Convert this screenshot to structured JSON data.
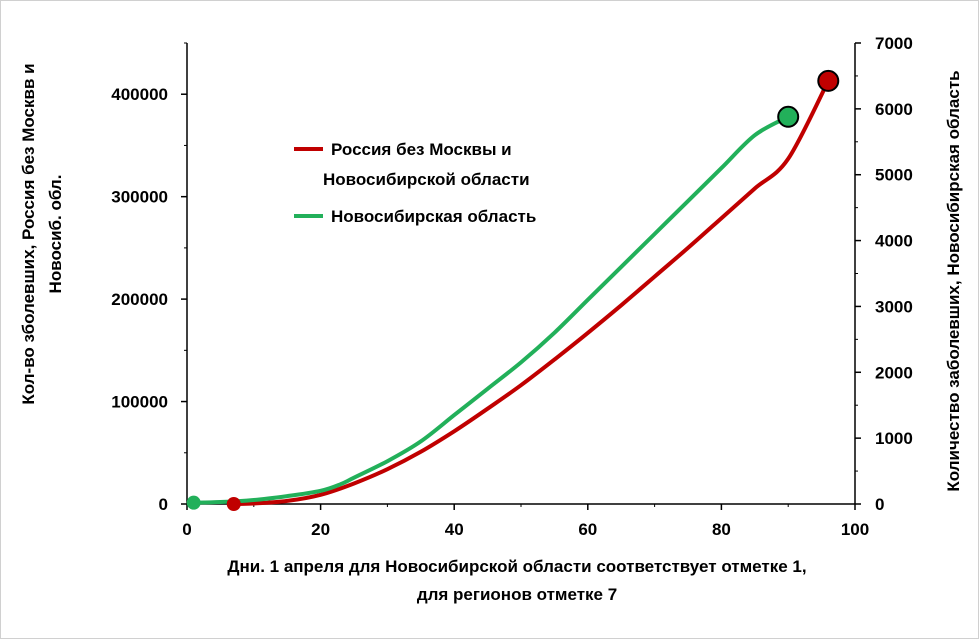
{
  "chart_data": {
    "type": "line",
    "xlabel_line1": "Дни. 1 апреля для Новосибирской области соответствует отметке 1,",
    "xlabel_line2": "для регионов отметке 7",
    "ylabel_left_line1": "Кол-во зболевших, Россия без Москвв и",
    "ylabel_left_line2": "Новосиб. обл.",
    "ylabel_right": "Количество заболевших, Новосибирская область",
    "xlim": [
      0,
      100
    ],
    "ylim_left": [
      0,
      450000
    ],
    "ylim_right": [
      0,
      7000
    ],
    "x_ticks": [
      "0",
      "20",
      "40",
      "60",
      "80",
      "100"
    ],
    "y_left_ticks": [
      "0",
      "100000",
      "200000",
      "300000",
      "400000"
    ],
    "y_right_ticks": [
      "0",
      "1000",
      "2000",
      "3000",
      "4000",
      "5000",
      "6000",
      "7000"
    ],
    "legend": {
      "placement": "top-left",
      "entries": [
        {
          "label_line1": "Россия без Москвы и",
          "label_line2": "Новосибирской области",
          "color": "#c00000"
        },
        {
          "label_line1": "Новосибирская область",
          "label_line2": "",
          "color": "#22b05a"
        }
      ]
    },
    "series": [
      {
        "name": "Россия без Москвы и Новосибирской области",
        "axis": "left",
        "color": "#c00000",
        "x": [
          7,
          10,
          15,
          20,
          25,
          30,
          35,
          40,
          45,
          50,
          55,
          60,
          65,
          70,
          75,
          80,
          85,
          90,
          96
        ],
        "y": [
          0,
          500,
          3000,
          9000,
          20000,
          34000,
          51000,
          71000,
          93000,
          116000,
          141000,
          167000,
          194000,
          222000,
          250000,
          279000,
          308000,
          337000,
          413000
        ],
        "endpoint_markers": [
          0,
          18
        ]
      },
      {
        "name": "Новосибирская область",
        "axis": "right",
        "color": "#22b05a",
        "x": [
          1,
          5,
          10,
          15,
          20,
          23,
          25,
          30,
          35,
          40,
          45,
          50,
          55,
          60,
          65,
          70,
          75,
          80,
          85,
          90
        ],
        "y": [
          20,
          30,
          60,
          120,
          200,
          300,
          400,
          650,
          950,
          1350,
          1750,
          2150,
          2600,
          3100,
          3600,
          4100,
          4600,
          5100,
          5600,
          5880
        ],
        "endpoint_markers": [
          0,
          19
        ]
      }
    ]
  }
}
